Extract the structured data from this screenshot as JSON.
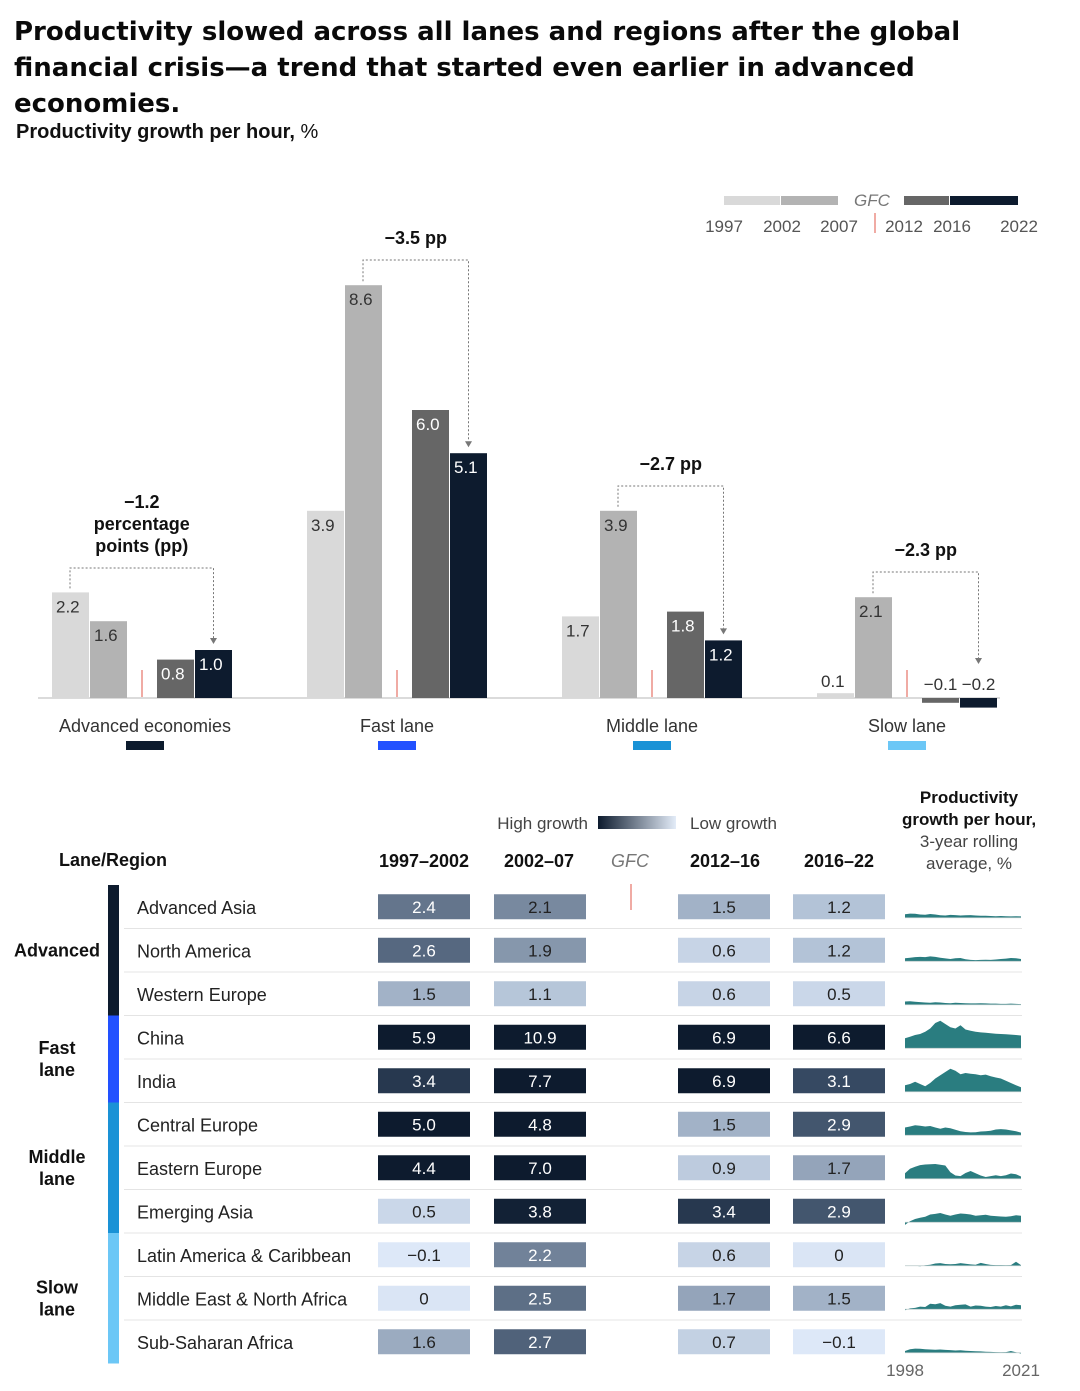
{
  "headline": "Productivity slowed across all lanes and regions after the global financial crisis—a trend that started even earlier in advanced economies.",
  "subtitle_bold": "Productivity growth per hour,",
  "subtitle_unit": " %",
  "legend": {
    "gfc_label": "GFC",
    "years": [
      "1997",
      "2002",
      "2007",
      "2012",
      "2016",
      "2022"
    ]
  },
  "colors": {
    "p1997_2002": "#d9d9d9",
    "p2002_2007": "#b3b3b3",
    "p2012_2016": "#666666",
    "p2016_2022": "#0d1b2e",
    "advanced": "#0d1b2e",
    "fast": "#2251ff",
    "middle": "#1a92d6",
    "slow": "#6cc7f6",
    "gfc_marker": "#e57368",
    "sparkline": "#2a7d80"
  },
  "chart_data": [
    {
      "type": "bar",
      "title": "Productivity growth per hour, %",
      "periods": [
        "1997–2002",
        "2002–07",
        "2012–16",
        "2016–22"
      ],
      "categories": [
        "Advanced economies",
        "Fast lane",
        "Middle lane",
        "Slow lane"
      ],
      "series": [
        {
          "values": [
            2.2,
            3.9,
            1.7,
            0.1
          ]
        },
        {
          "values": [
            1.6,
            8.6,
            3.9,
            2.1
          ]
        },
        {
          "values": [
            0.8,
            6.0,
            1.8,
            -0.1
          ]
        },
        {
          "values": [
            1.0,
            5.1,
            1.2,
            -0.2
          ]
        }
      ],
      "annotations": [
        {
          "lines": [
            "−1.2",
            "percentage",
            "points (pp)"
          ]
        },
        {
          "lines": [
            "−3.5 pp"
          ]
        },
        {
          "lines": [
            "−2.7 pp"
          ]
        },
        {
          "lines": [
            "−2.3 pp"
          ]
        }
      ],
      "value_labels": [
        [
          "2.2",
          "1.6",
          "0.8",
          "1.0"
        ],
        [
          "3.9",
          "8.6",
          "6.0",
          "5.1"
        ],
        [
          "1.7",
          "3.9",
          "1.8",
          "1.2"
        ],
        [
          "0.1",
          "2.1",
          "−0.1",
          "−0.2"
        ]
      ],
      "ylim": [
        -0.3,
        9.0
      ]
    },
    {
      "type": "heatmap",
      "legend_high": "High growth",
      "legend_low": "Low growth",
      "header_region": "Lane/Region",
      "columns": [
        "1997–2002",
        "2002–07",
        "GFC",
        "2012–16",
        "2016–22"
      ],
      "sparkline_header": [
        "Productivity",
        "growth per hour,",
        "3-year rolling",
        "average, %"
      ],
      "sparkline_axis": [
        "1998",
        "2021"
      ],
      "groups": [
        {
          "lines": [
            "Advanced"
          ],
          "lane": "advanced",
          "rows": [
            0,
            1,
            2
          ]
        },
        {
          "lines": [
            "Fast",
            "lane"
          ],
          "lane": "fast",
          "rows": [
            3,
            4
          ]
        },
        {
          "lines": [
            "Middle",
            "lane"
          ],
          "lane": "middle",
          "rows": [
            5,
            6,
            7
          ]
        },
        {
          "lines": [
            "Slow",
            "lane"
          ],
          "lane": "slow",
          "rows": [
            8,
            9,
            10
          ]
        }
      ],
      "rows": [
        {
          "region": "Advanced Asia",
          "labels": [
            "2.4",
            "2.1",
            "1.5",
            "1.2"
          ],
          "values": [
            2.4,
            2.1,
            1.5,
            1.2
          ],
          "spark": [
            1.6,
            1.9,
            1.8,
            1.5,
            1.4,
            1.7,
            1.5,
            1.1,
            1.0,
            1.3,
            1.2,
            1.0,
            1.1,
            1.2,
            1.0,
            0.9,
            0.9,
            0.8,
            0.7,
            0.8,
            0.7,
            0.6,
            0.7,
            0.6
          ]
        },
        {
          "region": "North America",
          "labels": [
            "2.6",
            "1.9",
            "0.6",
            "1.2"
          ],
          "values": [
            2.6,
            1.9,
            0.6,
            1.2
          ],
          "spark": [
            1.4,
            1.6,
            1.9,
            2.0,
            1.9,
            2.2,
            2.0,
            1.6,
            1.3,
            1.0,
            1.4,
            1.5,
            0.9,
            0.6,
            0.5,
            0.6,
            0.7,
            0.6,
            0.8,
            1.0,
            1.2,
            1.5,
            1.4,
            1.0
          ]
        },
        {
          "region": "Western Europe",
          "labels": [
            "1.5",
            "1.1",
            "0.6",
            "0.5"
          ],
          "values": [
            1.5,
            1.1,
            0.6,
            0.5
          ],
          "spark": [
            1.5,
            1.6,
            1.4,
            1.2,
            1.0,
            0.9,
            1.1,
            1.0,
            0.8,
            0.7,
            0.9,
            0.8,
            0.7,
            0.6,
            0.6,
            0.7,
            0.6,
            0.5,
            0.5,
            0.4,
            0.4,
            0.5,
            0.4,
            0.3
          ]
        },
        {
          "region": "China",
          "labels": [
            "5.9",
            "10.9",
            "6.9",
            "6.6"
          ],
          "values": [
            5.9,
            10.9,
            6.9,
            6.6
          ],
          "spark": [
            4.5,
            5.2,
            6.0,
            6.5,
            7.5,
            9.0,
            11.5,
            12.5,
            11.0,
            9.5,
            9.0,
            10.5,
            8.5,
            8.0,
            7.5,
            7.2,
            7.0,
            6.8,
            6.6,
            6.5,
            6.4,
            6.2,
            6.0,
            5.8
          ]
        },
        {
          "region": "India",
          "labels": [
            "3.4",
            "7.7",
            "6.9",
            "3.1"
          ],
          "values": [
            3.4,
            7.7,
            6.9,
            3.1
          ],
          "spark": [
            3.0,
            3.5,
            4.5,
            3.5,
            2.5,
            4.0,
            6.0,
            7.5,
            9.0,
            10.5,
            9.5,
            8.0,
            8.5,
            8.2,
            8.0,
            7.5,
            7.8,
            7.0,
            6.5,
            6.0,
            5.0,
            4.0,
            3.0,
            2.0
          ]
        },
        {
          "region": "Central Europe",
          "labels": [
            "5.0",
            "4.8",
            "1.5",
            "2.9"
          ],
          "values": [
            5.0,
            4.8,
            1.5,
            2.9
          ],
          "spark": [
            3.5,
            4.0,
            4.5,
            4.3,
            4.0,
            4.2,
            3.5,
            3.0,
            3.5,
            3.2,
            2.5,
            1.8,
            1.5,
            1.3,
            1.4,
            1.7,
            1.8,
            2.0,
            2.6,
            2.8,
            2.6,
            2.2,
            1.8,
            1.2
          ]
        },
        {
          "region": "Eastern Europe",
          "labels": [
            "4.4",
            "7.0",
            "0.9",
            "1.7"
          ],
          "values": [
            4.4,
            7.0,
            0.9,
            1.7
          ],
          "spark": [
            2.5,
            4.5,
            5.5,
            6.2,
            6.5,
            6.6,
            6.7,
            6.4,
            6.0,
            3.0,
            1.5,
            1.2,
            2.6,
            3.5,
            2.5,
            1.5,
            0.8,
            1.2,
            1.6,
            1.2,
            1.6,
            2.4,
            2.0,
            1.0
          ]
        },
        {
          "region": "Emerging Asia",
          "labels": [
            "0.5",
            "3.8",
            "3.4",
            "2.9"
          ],
          "values": [
            0.5,
            3.8,
            3.4,
            2.9
          ],
          "spark": [
            -1.2,
            0.5,
            1.5,
            2.0,
            2.5,
            3.5,
            3.8,
            4.2,
            3.5,
            3.0,
            3.5,
            4.0,
            3.8,
            3.5,
            3.0,
            3.2,
            3.4,
            3.0,
            2.8,
            2.6,
            2.5,
            2.7,
            3.2,
            3.0
          ]
        },
        {
          "region": "Latin America & Caribbean",
          "labels": [
            "−0.1",
            "2.2",
            "0.6",
            "0"
          ],
          "values": [
            -0.1,
            2.2,
            0.6,
            0.0
          ],
          "spark": [
            -0.1,
            0.1,
            0.0,
            -0.2,
            0.2,
            0.5,
            1.0,
            1.2,
            0.8,
            0.7,
            0.8,
            1.2,
            0.9,
            0.6,
            0.5,
            1.3,
            0.8,
            0.4,
            0.3,
            0.3,
            0.2,
            0.3,
            1.8,
            0.3
          ]
        },
        {
          "region": "Middle East & North Africa",
          "labels": [
            "0",
            "2.5",
            "1.7",
            "1.5"
          ],
          "values": [
            0.0,
            2.5,
            1.7,
            1.5
          ],
          "spark": [
            -0.5,
            0.4,
            0.6,
            1.2,
            1.0,
            2.5,
            2.3,
            2.8,
            1.6,
            1.2,
            1.8,
            2.0,
            2.2,
            1.2,
            1.7,
            1.6,
            1.2,
            1.0,
            1.5,
            1.2,
            1.8,
            1.3,
            2.0,
            1.8
          ]
        },
        {
          "region": "Sub-Saharan Africa",
          "labels": [
            "1.6",
            "2.7",
            "0.7",
            "−0.1"
          ],
          "values": [
            1.6,
            2.7,
            0.7,
            -0.1
          ],
          "spark": [
            0.8,
            1.6,
            1.9,
            1.8,
            1.6,
            1.5,
            1.4,
            1.5,
            1.3,
            1.2,
            1.0,
            1.1,
            0.9,
            0.8,
            0.7,
            0.6,
            0.5,
            0.4,
            0.3,
            0.2,
            0.3,
            0.8,
            0.2,
            -0.4
          ]
        }
      ]
    }
  ]
}
